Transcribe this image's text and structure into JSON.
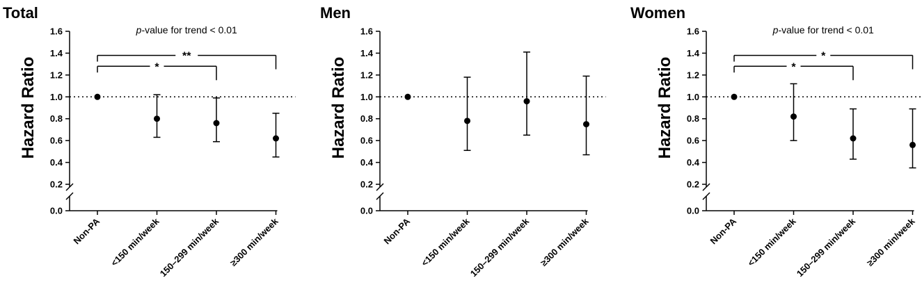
{
  "chart_data": [
    {
      "type": "scatter",
      "title": "Total",
      "ylabel": "Hazard Ratio",
      "categories": [
        "Non-PA",
        "<150 min/week",
        "150–299 min/week",
        "≥300 min/week"
      ],
      "values": [
        1.0,
        0.8,
        0.76,
        0.62
      ],
      "lower": [
        null,
        0.63,
        0.59,
        0.45
      ],
      "upper": [
        null,
        1.02,
        0.99,
        0.85
      ],
      "reference_line": 1.0,
      "yticks": [
        "0.0",
        "0.2",
        "0.4",
        "0.6",
        "0.8",
        "1.0",
        "1.2",
        "1.4",
        "1.6"
      ],
      "axis_break": [
        0.0,
        0.2
      ],
      "ylim": [
        0,
        1.6
      ],
      "annotation": {
        "italic": "p",
        "text": "-value for trend < 0.01"
      },
      "brackets": [
        {
          "from": 0,
          "to": 2,
          "y": 1.28,
          "label": "*"
        },
        {
          "from": 0,
          "to": 3,
          "y": 1.38,
          "label": "**"
        }
      ]
    },
    {
      "type": "scatter",
      "title": "Men",
      "ylabel": "Hazard Ratio",
      "categories": [
        "Non-PA",
        "<150 min/week",
        "150–299 min/week",
        "≥300 min/week"
      ],
      "values": [
        1.0,
        0.78,
        0.96,
        0.75
      ],
      "lower": [
        null,
        0.51,
        0.65,
        0.47
      ],
      "upper": [
        null,
        1.18,
        1.41,
        1.19
      ],
      "reference_line": 1.0,
      "yticks": [
        "0.0",
        "0.2",
        "0.4",
        "0.6",
        "0.8",
        "1.0",
        "1.2",
        "1.4",
        "1.6"
      ],
      "axis_break": [
        0.0,
        0.2
      ],
      "ylim": [
        0,
        1.6
      ],
      "annotation": null,
      "brackets": []
    },
    {
      "type": "scatter",
      "title": "Women",
      "ylabel": "Hazard Ratio",
      "categories": [
        "Non-PA",
        "<150 min/week",
        "150–299 min/week",
        "≥300 min/week"
      ],
      "values": [
        1.0,
        0.82,
        0.62,
        0.56
      ],
      "lower": [
        null,
        0.6,
        0.43,
        0.35
      ],
      "upper": [
        null,
        1.12,
        0.89,
        0.89
      ],
      "reference_line": 1.0,
      "yticks": [
        "0.0",
        "0.2",
        "0.4",
        "0.6",
        "0.8",
        "1.0",
        "1.2",
        "1.4",
        "1.6"
      ],
      "axis_break": [
        0.0,
        0.2
      ],
      "ylim": [
        0,
        1.6
      ],
      "annotation": {
        "italic": "p",
        "text": "-value for trend < 0.01"
      },
      "brackets": [
        {
          "from": 0,
          "to": 2,
          "y": 1.28,
          "label": "*"
        },
        {
          "from": 0,
          "to": 3,
          "y": 1.38,
          "label": "*"
        }
      ]
    }
  ]
}
